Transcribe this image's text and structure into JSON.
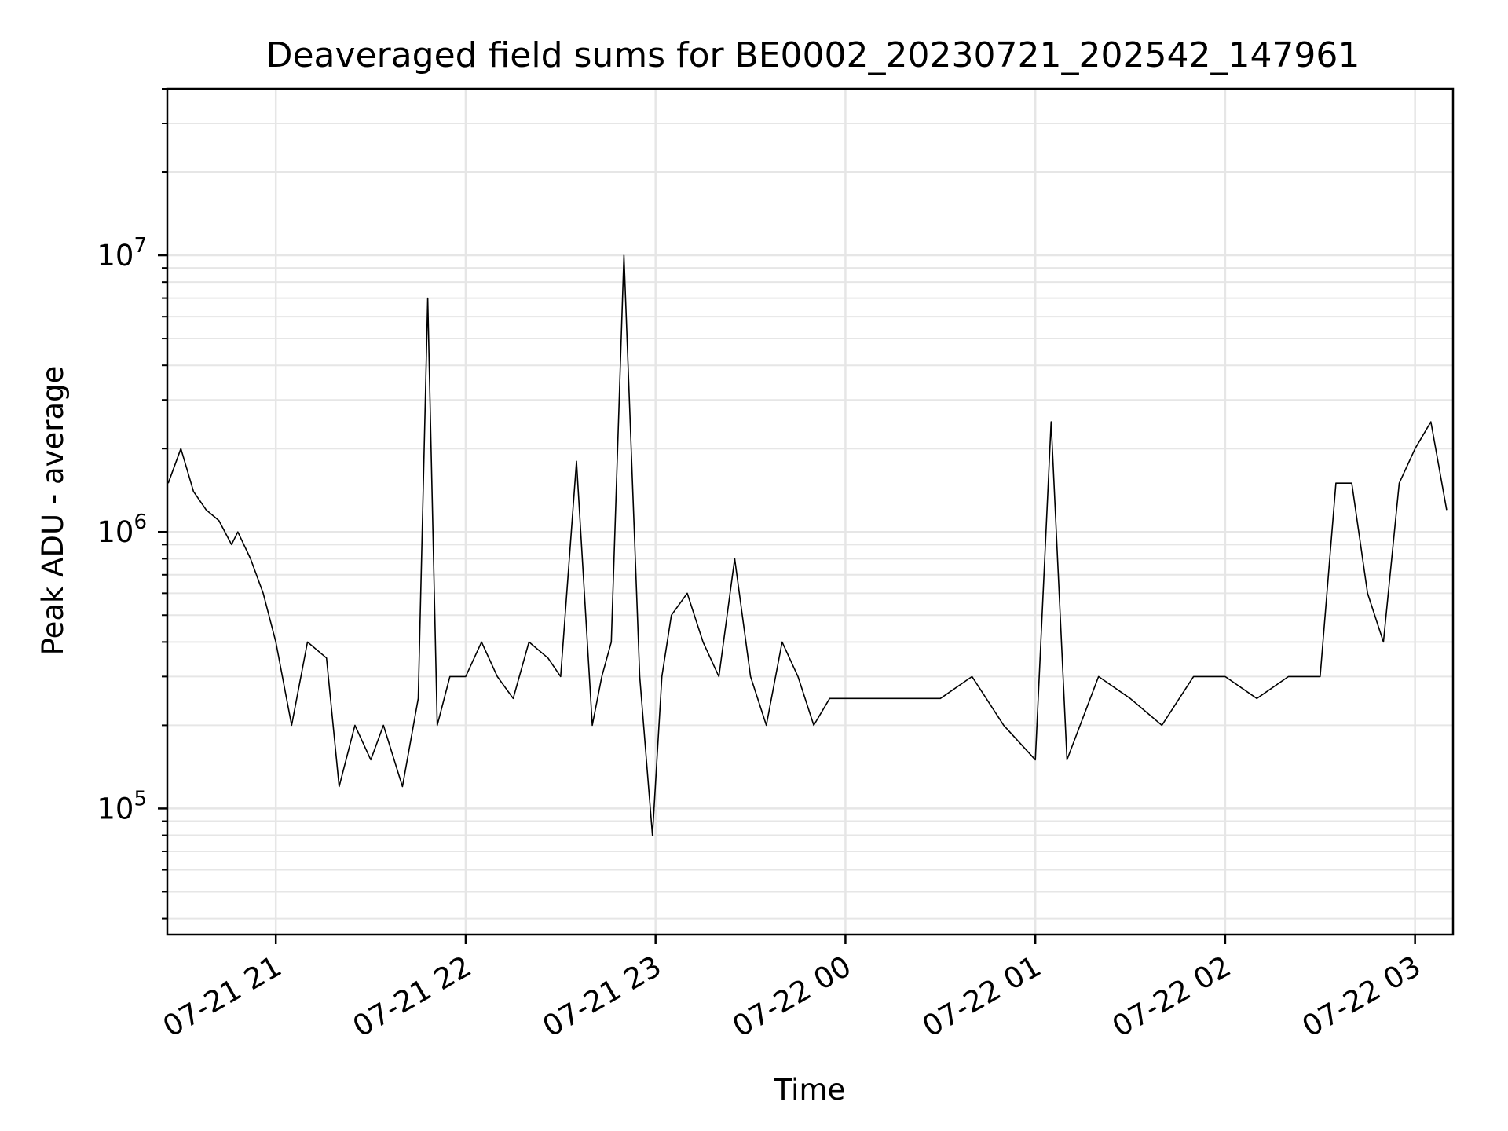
{
  "chart_data": {
    "type": "line",
    "title": "Deaveraged field sums for BE0002_20230721_202542_147961",
    "xlabel": "Time",
    "ylabel": "Peak ADU - average",
    "y_scale": "log",
    "ylim": [
      35000,
      40000000
    ],
    "xlim": [
      "2023-07-21 20:25:42",
      "2023-07-22 03:12:00"
    ],
    "x_ticks": [
      {
        "t": "2023-07-21 21:00",
        "label": "07-21 21"
      },
      {
        "t": "2023-07-21 22:00",
        "label": "07-21 22"
      },
      {
        "t": "2023-07-21 23:00",
        "label": "07-21 23"
      },
      {
        "t": "2023-07-22 00:00",
        "label": "07-22 00"
      },
      {
        "t": "2023-07-22 01:00",
        "label": "07-22 01"
      },
      {
        "t": "2023-07-22 02:00",
        "label": "07-22 02"
      },
      {
        "t": "2023-07-22 03:00",
        "label": "07-22 03"
      }
    ],
    "y_ticks": [
      {
        "value": 100000,
        "base": "10",
        "exp": "5"
      },
      {
        "value": 1000000,
        "base": "10",
        "exp": "6"
      },
      {
        "value": 10000000,
        "base": "10",
        "exp": "7"
      }
    ],
    "grid": true,
    "line_color": "#000000",
    "grid_color": "#e6e6e6",
    "series": [
      {
        "x": [
          "2023-07-21 20:26",
          "2023-07-21 20:30",
          "2023-07-21 20:34",
          "2023-07-21 20:38",
          "2023-07-21 20:42",
          "2023-07-21 20:46",
          "2023-07-21 20:48",
          "2023-07-21 20:52",
          "2023-07-21 20:56",
          "2023-07-21 21:00",
          "2023-07-21 21:05",
          "2023-07-21 21:10",
          "2023-07-21 21:16",
          "2023-07-21 21:20",
          "2023-07-21 21:25",
          "2023-07-21 21:30",
          "2023-07-21 21:34",
          "2023-07-21 21:40",
          "2023-07-21 21:45",
          "2023-07-21 21:48",
          "2023-07-21 21:51",
          "2023-07-21 21:55",
          "2023-07-21 22:00",
          "2023-07-21 22:05",
          "2023-07-21 22:10",
          "2023-07-21 22:15",
          "2023-07-21 22:20",
          "2023-07-21 22:26",
          "2023-07-21 22:30",
          "2023-07-21 22:35",
          "2023-07-21 22:40",
          "2023-07-21 22:43",
          "2023-07-21 22:46",
          "2023-07-21 22:50",
          "2023-07-21 22:55",
          "2023-07-21 22:59",
          "2023-07-21 23:02",
          "2023-07-21 23:05",
          "2023-07-21 23:10",
          "2023-07-21 23:15",
          "2023-07-21 23:20",
          "2023-07-21 23:25",
          "2023-07-21 23:30",
          "2023-07-21 23:35",
          "2023-07-21 23:40",
          "2023-07-21 23:45",
          "2023-07-21 23:50",
          "2023-07-21 23:55",
          "2023-07-22 00:00",
          "2023-07-22 00:10",
          "2023-07-22 00:20",
          "2023-07-22 00:30",
          "2023-07-22 00:40",
          "2023-07-22 00:50",
          "2023-07-22 01:00",
          "2023-07-22 01:05",
          "2023-07-22 01:10",
          "2023-07-22 01:20",
          "2023-07-22 01:30",
          "2023-07-22 01:40",
          "2023-07-22 01:50",
          "2023-07-22 02:00",
          "2023-07-22 02:10",
          "2023-07-22 02:20",
          "2023-07-22 02:30",
          "2023-07-22 02:35",
          "2023-07-22 02:40",
          "2023-07-22 02:45",
          "2023-07-22 02:50",
          "2023-07-22 02:55",
          "2023-07-22 03:00",
          "2023-07-22 03:05",
          "2023-07-22 03:10"
        ],
        "y": [
          1500000,
          2000000,
          1400000,
          1200000,
          1100000,
          900000,
          1000000,
          800000,
          600000,
          400000,
          200000,
          400000,
          350000,
          120000,
          200000,
          150000,
          200000,
          120000,
          250000,
          7000000,
          200000,
          300000,
          300000,
          400000,
          300000,
          250000,
          400000,
          350000,
          300000,
          1800000,
          200000,
          300000,
          400000,
          10000000,
          300000,
          80000,
          300000,
          500000,
          600000,
          400000,
          300000,
          800000,
          300000,
          200000,
          400000,
          300000,
          200000,
          250000,
          250000,
          250000,
          250000,
          250000,
          300000,
          200000,
          150000,
          2500000,
          150000,
          300000,
          250000,
          200000,
          300000,
          300000,
          250000,
          300000,
          300000,
          1500000,
          1500000,
          600000,
          400000,
          1500000,
          2000000,
          2500000,
          1200000
        ]
      }
    ],
    "annotations": []
  }
}
